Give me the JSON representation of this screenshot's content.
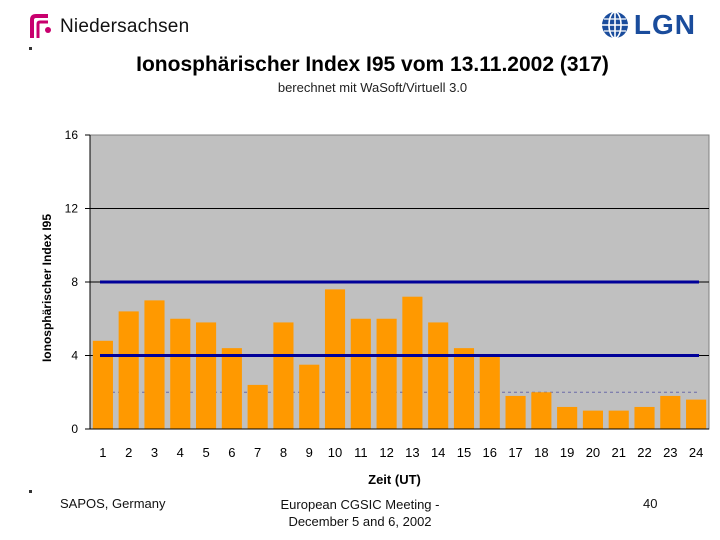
{
  "header": {
    "left_logo_text": "Niedersachsen",
    "right_logo_text": "LGN"
  },
  "chart_title": "Ionosphärischer Index I95 vom 13.11.2002 (317)",
  "chart_subtitle": "berechnet mit WaSoft/Virtuell 3.0",
  "colors": {
    "bar_fill": "#ff9900",
    "plot_bg": "#c0c0c0",
    "threshold_line": "#000099",
    "logo_blue": "#1a4c9c",
    "logo_magenta": "#c8006e"
  },
  "chart_data": {
    "type": "bar",
    "title": "Ionosphärischer Index I95 vom 13.11.2002 (317)",
    "subtitle": "berechnet mit WaSoft/Virtuell 3.0",
    "xlabel": "Zeit (UT)",
    "ylabel": "Ionosphärischer Index I95",
    "categories": [
      "1",
      "2",
      "3",
      "4",
      "5",
      "6",
      "7",
      "8",
      "9",
      "10",
      "11",
      "12",
      "13",
      "14",
      "15",
      "16",
      "17",
      "18",
      "19",
      "20",
      "21",
      "22",
      "23",
      "24"
    ],
    "values": [
      4.8,
      6.4,
      7.0,
      6.0,
      5.8,
      4.4,
      2.4,
      5.8,
      3.5,
      7.6,
      6.0,
      6.0,
      7.2,
      5.8,
      4.4,
      4.0,
      1.8,
      2.0,
      1.2,
      1.0,
      1.0,
      1.2,
      1.8,
      1.6
    ],
    "yticks": [
      0,
      4,
      8,
      12,
      16
    ],
    "ylim": [
      0,
      16
    ],
    "grid": true,
    "reference_lines": [
      4,
      8
    ],
    "dashed_line": 2
  },
  "footer": {
    "left": "SAPOS, Germany",
    "middle_line1": "European CGSIC Meeting -",
    "middle_line2": "December 5 and 6, 2002",
    "page_number": "40"
  }
}
